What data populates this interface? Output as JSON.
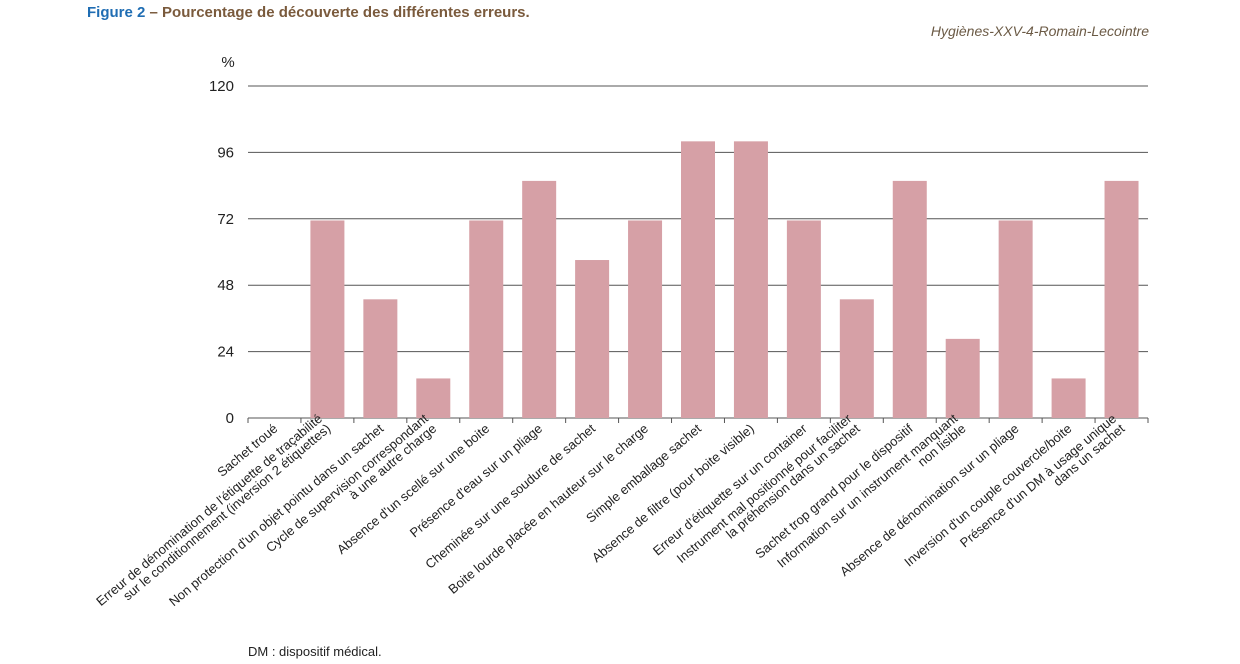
{
  "figure": {
    "number": "Figure 2",
    "title": " – Pourcentage de découverte des différentes erreurs.",
    "source": "Hygiènes-XXV-4-Romain-Lecointre",
    "footnote": "DM : dispositif médical."
  },
  "colors": {
    "bar": "#d6a0a6",
    "grid": "#555555",
    "title_num": "#1f6db3",
    "title_text": "#7a5a3c"
  },
  "chart_data": {
    "type": "bar",
    "ylabel": "%",
    "ylim": [
      0,
      120
    ],
    "yticks": [
      0,
      24,
      48,
      72,
      96,
      120
    ],
    "grid": true,
    "categories": [
      "Sachet troué",
      "Erreur de dénomination de l'étiquette de traçabilité\nsur le conditionnement (inversion 2 étiquettes)",
      "Non protection d'un objet pointu dans un sachet",
      "Cycle de supervision correspondant\nà une autre charge",
      "Absence d'un scellé sur une boite",
      "Présence d'eau sur un pliage",
      "Cheminée sur une soudure de sachet",
      "Boite lourde placée en hauteur sur le charge",
      "Simple emballage sachet",
      "Absence de filtre (pour boite visible)",
      "Erreur d'étiquette sur un container",
      "Instrument mal positionné pour faciliter\nla préhension dans un sachet",
      "Sachet trop grand pour le dispositif",
      "Information sur un instrument manquant\nnon lisible",
      "Absence de dénomination sur un pliage",
      "Inversion d'un couple couvercle/boite",
      "Présence d'un DM à usage unique\ndans un sachet"
    ],
    "values": [
      0,
      71.4,
      42.9,
      14.3,
      71.4,
      85.7,
      57.1,
      71.4,
      100,
      100,
      71.4,
      42.9,
      85.7,
      28.6,
      71.4,
      14.3,
      85.7
    ]
  }
}
